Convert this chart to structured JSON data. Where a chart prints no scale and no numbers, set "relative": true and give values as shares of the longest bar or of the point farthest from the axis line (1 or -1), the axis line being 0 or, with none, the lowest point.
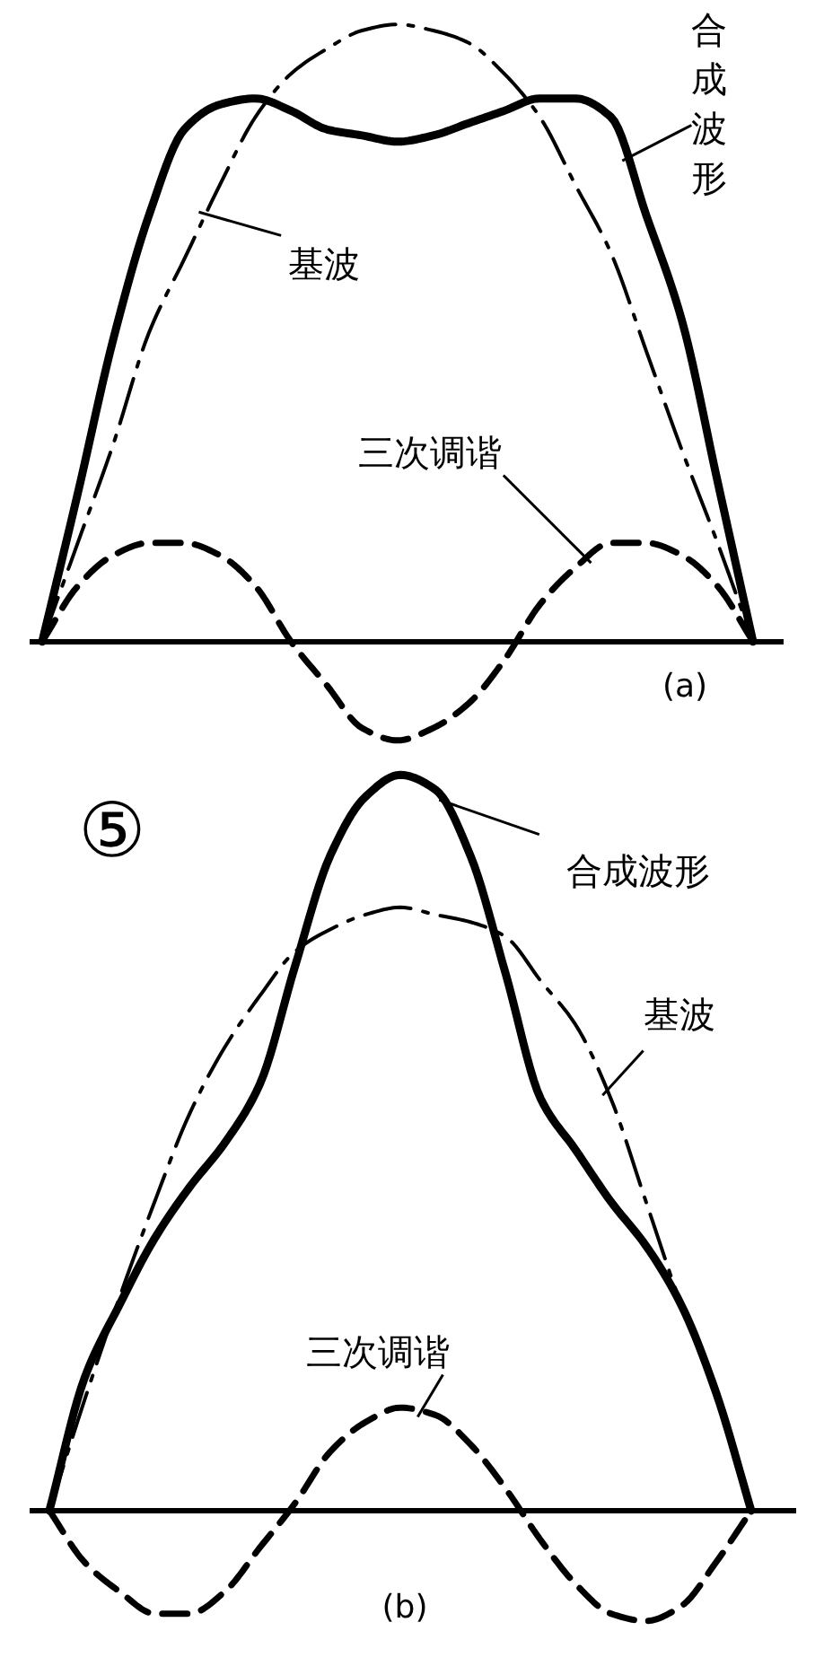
{
  "chart_data": [
    {
      "type": "line",
      "title": "(a)",
      "relative": true,
      "categories": [
        null,
        null,
        null,
        null,
        null,
        null,
        null,
        null,
        null,
        null,
        null,
        null,
        null,
        null,
        null,
        null,
        null,
        null,
        null,
        null,
        null
      ],
      "series": [
        {
          "name": "合成波形",
          "color": "#000000",
          "line_style": "solid",
          "values": [
            0,
            0.24,
            0.49,
            0.69,
            0.83,
            0.87,
            0.88,
            0.86,
            0.83,
            0.82,
            0.81,
            0.82,
            0.84,
            0.86,
            0.88,
            0.88,
            0.85,
            0.69,
            0.52,
            0.26,
            0
          ]
        },
        {
          "name": "基波",
          "color": "#000000",
          "line_style": "dashdot",
          "values": [
            0,
            0.16,
            0.32,
            0.5,
            0.62,
            0.74,
            0.85,
            0.92,
            0.96,
            0.99,
            1,
            0.99,
            0.97,
            0.92,
            0.85,
            0.74,
            0.63,
            0.47,
            0.31,
            0.16,
            0
          ]
        },
        {
          "name": "三次调谐",
          "color": "#000000",
          "line_style": "dashed",
          "values": [
            0,
            0.09,
            0.14,
            0.16,
            0.16,
            0.14,
            0.09,
            0,
            -0.07,
            -0.14,
            -0.16,
            -0.14,
            -0.1,
            -0.03,
            0.06,
            0.12,
            0.16,
            0.16,
            0.14,
            0.09,
            0
          ]
        }
      ]
    },
    {
      "type": "line",
      "title": "(b)",
      "annotations": [
        "⑤"
      ],
      "relative": true,
      "categories": [
        null,
        null,
        null,
        null,
        null,
        null,
        null,
        null,
        null,
        null,
        null,
        null,
        null,
        null,
        null,
        null,
        null,
        null,
        null,
        null,
        null
      ],
      "series": [
        {
          "name": "合成波形",
          "color": "#000000",
          "line_style": "solid",
          "values": [
            0,
            0.18,
            0.28,
            0.37,
            0.44,
            0.5,
            0.58,
            0.74,
            0.89,
            0.97,
            1,
            0.98,
            0.89,
            0.73,
            0.56,
            0.49,
            0.42,
            0.36,
            0.28,
            0.16,
            0
          ]
        },
        {
          "name": "基波",
          "color": "#000000",
          "line_style": "dashdot",
          "values": [
            0,
            0.15,
            0.29,
            0.42,
            0.54,
            0.63,
            0.7,
            0.76,
            0.79,
            0.81,
            0.82,
            0.81,
            0.8,
            0.78,
            0.72,
            0.66,
            0.56,
            0.42,
            0.28,
            0.16,
            0
          ]
        },
        {
          "name": "三次调谐",
          "color": "#000000",
          "line_style": "dashed",
          "values": [
            0,
            -0.07,
            -0.11,
            -0.14,
            -0.14,
            -0.11,
            -0.05,
            0.01,
            0.08,
            0.12,
            0.14,
            0.13,
            0.09,
            0.03,
            -0.04,
            -0.1,
            -0.14,
            -0.15,
            -0.13,
            -0.07,
            0
          ]
        }
      ]
    }
  ]
}
